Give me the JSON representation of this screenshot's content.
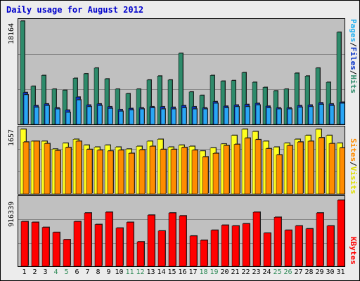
{
  "window": {
    "title": "Daily usage for August 2012"
  },
  "colors": {
    "hits": "#2e8b6b",
    "files": "#2aa6f5",
    "pages": "#0b36c8",
    "visits": "#ffff20",
    "sites": "#ff8c00",
    "kbytes": "#ff0000",
    "panel_bg": "#c0c0c0",
    "weekday_label": "#000000",
    "weekend_label": "#2e8b57"
  },
  "axis_labels": {
    "top_max": "18164",
    "mid_max": "1657",
    "bot_max": "916339"
  },
  "legend": {
    "pages": "Pages",
    "sep1": "/",
    "files": "Files",
    "sep2": "/",
    "hits": "Hits",
    "sites": "Sites",
    "sep3": "/",
    "visits": "Visits",
    "kbytes": "KBytes"
  },
  "chart_data": [
    {
      "type": "bar",
      "title": "Daily usage for August 2012",
      "categories": [
        "1",
        "2",
        "3",
        "4",
        "5",
        "6",
        "7",
        "8",
        "9",
        "10",
        "11",
        "12",
        "13",
        "14",
        "15",
        "16",
        "17",
        "18",
        "19",
        "20",
        "21",
        "22",
        "23",
        "24",
        "25",
        "26",
        "27",
        "28",
        "29",
        "30",
        "31"
      ],
      "weekend_days": [
        "4",
        "5",
        "11",
        "12",
        "18",
        "19",
        "25",
        "26"
      ],
      "ylim": [
        0,
        18164
      ],
      "series": [
        {
          "name": "Hits",
          "values": [
            18164,
            6700,
            8600,
            6200,
            6000,
            8100,
            8900,
            9900,
            8000,
            6200,
            5400,
            6200,
            7800,
            8500,
            7800,
            12500,
            5700,
            5100,
            8600,
            7600,
            7700,
            9100,
            7400,
            6500,
            5900,
            6200,
            9000,
            8500,
            9900,
            7400,
            16200
          ]
        },
        {
          "name": "Files",
          "values": [
            5200,
            3000,
            3300,
            2700,
            2100,
            4300,
            3100,
            3300,
            2800,
            2300,
            2500,
            2700,
            2900,
            2700,
            2700,
            2900,
            2700,
            2700,
            3700,
            2900,
            3100,
            3100,
            3400,
            2900,
            2700,
            2700,
            3000,
            3100,
            3500,
            3300,
            3700
          ]
        },
        {
          "name": "Pages",
          "values": [
            5600,
            3300,
            3600,
            2900,
            2500,
            4800,
            3400,
            3600,
            3100,
            2600,
            2800,
            2900,
            3100,
            3100,
            3000,
            3300,
            3100,
            2900,
            4000,
            3200,
            3400,
            3500,
            3700,
            3200,
            2900,
            2900,
            3300,
            3400,
            3800,
            3600,
            3900
          ]
        }
      ]
    },
    {
      "type": "bar",
      "categories": [
        "1",
        "2",
        "3",
        "4",
        "5",
        "6",
        "7",
        "8",
        "9",
        "10",
        "11",
        "12",
        "13",
        "14",
        "15",
        "16",
        "17",
        "18",
        "19",
        "20",
        "21",
        "22",
        "23",
        "24",
        "25",
        "26",
        "27",
        "28",
        "29",
        "30",
        "31"
      ],
      "ylim": [
        0,
        1657
      ],
      "series": [
        {
          "name": "Visits",
          "values": [
            1657,
            1350,
            1350,
            1150,
            1300,
            1400,
            1250,
            1200,
            1250,
            1200,
            1150,
            1220,
            1350,
            1400,
            1200,
            1250,
            1220,
            1100,
            1180,
            1280,
            1500,
            1657,
            1600,
            1350,
            1200,
            1300,
            1400,
            1500,
            1657,
            1500,
            1300
          ]
        },
        {
          "name": "Sites",
          "values": [
            1330,
            1350,
            1290,
            1110,
            1190,
            1350,
            1140,
            1120,
            1100,
            1120,
            1040,
            1130,
            1220,
            1140,
            1140,
            1190,
            1120,
            950,
            1040,
            1240,
            1270,
            1430,
            1390,
            1160,
            1000,
            1240,
            1330,
            1350,
            1440,
            1290,
            1180
          ]
        }
      ]
    },
    {
      "type": "bar",
      "categories": [
        "1",
        "2",
        "3",
        "4",
        "5",
        "6",
        "7",
        "8",
        "9",
        "10",
        "11",
        "12",
        "13",
        "14",
        "15",
        "16",
        "17",
        "18",
        "19",
        "20",
        "21",
        "22",
        "23",
        "24",
        "25",
        "26",
        "27",
        "28",
        "29",
        "30",
        "31"
      ],
      "ylim": [
        0,
        916339
      ],
      "series": [
        {
          "name": "KBytes",
          "values": [
            620000,
            610000,
            540000,
            470000,
            370000,
            620000,
            740000,
            580000,
            750000,
            530000,
            610000,
            340000,
            710000,
            490000,
            740000,
            700000,
            420000,
            360000,
            500000,
            570000,
            560000,
            590000,
            750000,
            460000,
            680000,
            500000,
            560000,
            520000,
            740000,
            560000,
            916339
          ]
        }
      ]
    }
  ]
}
